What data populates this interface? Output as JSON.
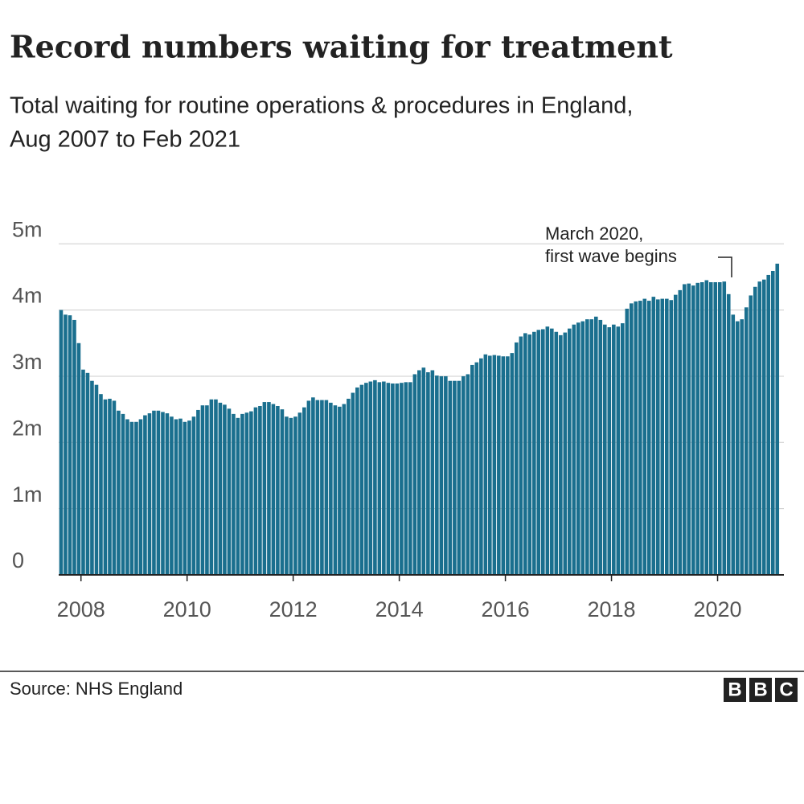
{
  "chart_data": {
    "type": "bar",
    "title": "Record numbers waiting for treatment",
    "subtitle": [
      "Total waiting for routine operations & procedures in England,",
      "Aug 2007 to Feb 2021"
    ],
    "annotation": [
      "March 2020,",
      "first wave begins"
    ],
    "source": "Source: NHS England",
    "logo": [
      "B",
      "B",
      "C"
    ],
    "color": "#1a6f8e",
    "grid": true,
    "xlim": [
      2007.58,
      2021.25
    ],
    "xticks": [
      2008,
      2010,
      2012,
      2014,
      2016,
      2018,
      2020
    ],
    "ylim": [
      0,
      5.1
    ],
    "yticks": [
      0,
      {
        "value": 1,
        "label": "1m"
      },
      {
        "value": 2,
        "label": "2m"
      },
      {
        "value": 3,
        "label": "3m"
      },
      {
        "value": 4,
        "label": "4m"
      },
      {
        "value": 5,
        "label": "5m"
      }
    ],
    "x": [
      2007.625,
      2007.708,
      2007.792,
      2007.875,
      2007.958,
      2008.042,
      2008.125,
      2008.208,
      2008.292,
      2008.375,
      2008.458,
      2008.542,
      2008.625,
      2008.708,
      2008.792,
      2008.875,
      2008.958,
      2009.042,
      2009.125,
      2009.208,
      2009.292,
      2009.375,
      2009.458,
      2009.542,
      2009.625,
      2009.708,
      2009.792,
      2009.875,
      2009.958,
      2010.042,
      2010.125,
      2010.208,
      2010.292,
      2010.375,
      2010.458,
      2010.542,
      2010.625,
      2010.708,
      2010.792,
      2010.875,
      2010.958,
      2011.042,
      2011.125,
      2011.208,
      2011.292,
      2011.375,
      2011.458,
      2011.542,
      2011.625,
      2011.708,
      2011.792,
      2011.875,
      2011.958,
      2012.042,
      2012.125,
      2012.208,
      2012.292,
      2012.375,
      2012.458,
      2012.542,
      2012.625,
      2012.708,
      2012.792,
      2012.875,
      2012.958,
      2013.042,
      2013.125,
      2013.208,
      2013.292,
      2013.375,
      2013.458,
      2013.542,
      2013.625,
      2013.708,
      2013.792,
      2013.875,
      2013.958,
      2014.042,
      2014.125,
      2014.208,
      2014.292,
      2014.375,
      2014.458,
      2014.542,
      2014.625,
      2014.708,
      2014.792,
      2014.875,
      2014.958,
      2015.042,
      2015.125,
      2015.208,
      2015.292,
      2015.375,
      2015.458,
      2015.542,
      2015.625,
      2015.708,
      2015.792,
      2015.875,
      2015.958,
      2016.042,
      2016.125,
      2016.208,
      2016.292,
      2016.375,
      2016.458,
      2016.542,
      2016.625,
      2016.708,
      2016.792,
      2016.875,
      2016.958,
      2017.042,
      2017.125,
      2017.208,
      2017.292,
      2017.375,
      2017.458,
      2017.542,
      2017.625,
      2017.708,
      2017.792,
      2017.875,
      2017.958,
      2018.042,
      2018.125,
      2018.208,
      2018.292,
      2018.375,
      2018.458,
      2018.542,
      2018.625,
      2018.708,
      2018.792,
      2018.875,
      2018.958,
      2019.042,
      2019.125,
      2019.208,
      2019.292,
      2019.375,
      2019.458,
      2019.542,
      2019.625,
      2019.708,
      2019.792,
      2019.875,
      2019.958,
      2020.042,
      2020.125,
      2020.208,
      2020.292,
      2020.375,
      2020.458,
      2020.542,
      2020.625,
      2020.708,
      2020.792,
      2020.875,
      2020.958,
      2021.042,
      2021.125
    ],
    "values": [
      4.0,
      3.93,
      3.92,
      3.85,
      3.5,
      3.1,
      3.05,
      2.93,
      2.87,
      2.73,
      2.65,
      2.66,
      2.63,
      2.48,
      2.43,
      2.35,
      2.31,
      2.31,
      2.35,
      2.41,
      2.44,
      2.48,
      2.48,
      2.46,
      2.44,
      2.39,
      2.35,
      2.36,
      2.31,
      2.33,
      2.39,
      2.49,
      2.56,
      2.56,
      2.65,
      2.65,
      2.6,
      2.57,
      2.51,
      2.43,
      2.37,
      2.43,
      2.45,
      2.47,
      2.53,
      2.55,
      2.61,
      2.61,
      2.58,
      2.55,
      2.5,
      2.39,
      2.37,
      2.39,
      2.45,
      2.53,
      2.63,
      2.68,
      2.64,
      2.64,
      2.64,
      2.6,
      2.56,
      2.54,
      2.58,
      2.66,
      2.75,
      2.83,
      2.87,
      2.9,
      2.92,
      2.94,
      2.91,
      2.92,
      2.9,
      2.89,
      2.89,
      2.9,
      2.91,
      2.91,
      3.03,
      3.09,
      3.13,
      3.06,
      3.09,
      3.01,
      3.0,
      3.0,
      2.93,
      2.93,
      2.93,
      3.0,
      3.03,
      3.17,
      3.21,
      3.27,
      3.33,
      3.31,
      3.32,
      3.31,
      3.3,
      3.3,
      3.35,
      3.51,
      3.6,
      3.65,
      3.63,
      3.67,
      3.7,
      3.71,
      3.75,
      3.72,
      3.67,
      3.62,
      3.66,
      3.72,
      3.78,
      3.81,
      3.83,
      3.86,
      3.86,
      3.9,
      3.85,
      3.78,
      3.74,
      3.78,
      3.75,
      3.8,
      4.02,
      4.1,
      4.13,
      4.14,
      4.17,
      4.14,
      4.2,
      4.16,
      4.17,
      4.17,
      4.15,
      4.23,
      4.3,
      4.39,
      4.4,
      4.37,
      4.41,
      4.42,
      4.45,
      4.42,
      4.42,
      4.42,
      4.43,
      4.24,
      3.93,
      3.83,
      3.86,
      4.04,
      4.22,
      4.35,
      4.43,
      4.46,
      4.53,
      4.59,
      4.7
    ]
  }
}
